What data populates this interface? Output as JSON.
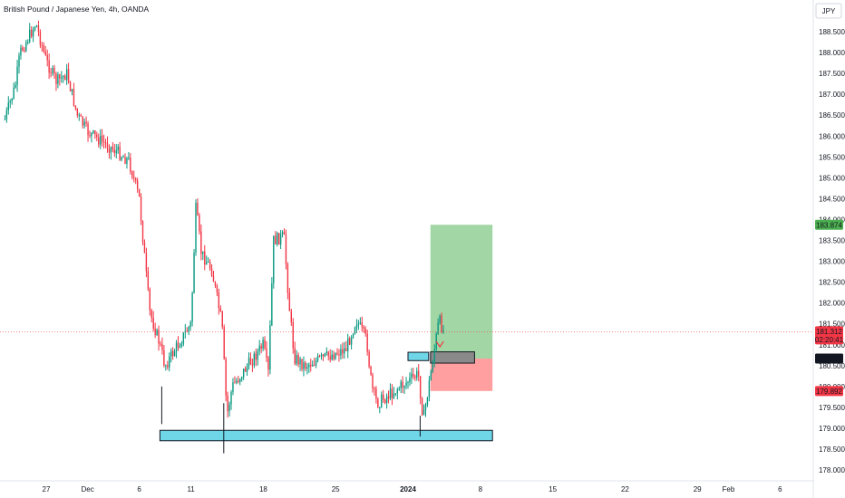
{
  "chart_data": {
    "type": "candlestick",
    "title": "British Pound / Japanese Yen, 4h, OANDA",
    "currency_label": "JPY",
    "colors": {
      "up": "#089981",
      "down": "#f23645",
      "zone": "#6fd6e8",
      "target": "#9dd49f",
      "stop": "#ff9a9a",
      "price_line": "#f23645"
    },
    "y_ticks": [
      "188.500",
      "188.000",
      "187.500",
      "187.000",
      "186.500",
      "186.000",
      "185.500",
      "185.000",
      "184.500",
      "184.000",
      "183.500",
      "183.000",
      "182.500",
      "182.000",
      "181.500",
      "181.000",
      "180.500",
      "180.000",
      "179.500",
      "179.000",
      "178.500",
      "178.000"
    ],
    "x_ticks": [
      "27",
      "Dec",
      "6",
      "11",
      "18",
      "25",
      "2024",
      "8",
      "15",
      "22",
      "29",
      "Feb",
      "6"
    ],
    "bold_x_tick": "2024",
    "price_badges": [
      {
        "label": "183.874",
        "color": "#4caf50"
      },
      {
        "label": "181.312",
        "sublabel": "02:20:41",
        "color": "#f23645"
      },
      {
        "label": "180.669",
        "color": "#131722"
      },
      {
        "label": "179.892",
        "color": "#f23645"
      }
    ],
    "price_path": [
      {
        "t": "Nov 23",
        "price": 186.4
      },
      {
        "t": "Nov 24",
        "price": 187.2
      },
      {
        "t": "Nov 24",
        "price": 188.0
      },
      {
        "t": "Nov 26",
        "price": 188.7
      },
      {
        "t": "Nov 27",
        "price": 187.8
      },
      {
        "t": "Nov 28",
        "price": 187.3
      },
      {
        "t": "Nov 29",
        "price": 187.5
      },
      {
        "t": "Nov 30",
        "price": 186.5
      },
      {
        "t": "Dec 1",
        "price": 186.1
      },
      {
        "t": "Dec 4",
        "price": 185.6
      },
      {
        "t": "Dec 5",
        "price": 185.4
      },
      {
        "t": "Dec 6",
        "price": 184.5
      },
      {
        "t": "Dec 7",
        "price": 181.8
      },
      {
        "t": "Dec 8",
        "price": 181.0
      },
      {
        "t": "Dec 8",
        "price": 180.5
      },
      {
        "t": "Dec 11",
        "price": 181.5
      },
      {
        "t": "Dec 11",
        "price": 184.3
      },
      {
        "t": "Dec 12",
        "price": 183.2
      },
      {
        "t": "Dec 13",
        "price": 182.8
      },
      {
        "t": "Dec 14",
        "price": 181.5
      },
      {
        "t": "Dec 14",
        "price": 179.3
      },
      {
        "t": "Dec 15",
        "price": 180.0
      },
      {
        "t": "Dec 18",
        "price": 181.0
      },
      {
        "t": "Dec 18",
        "price": 180.3
      },
      {
        "t": "Dec 19",
        "price": 183.5
      },
      {
        "t": "Dec 20",
        "price": 183.6
      },
      {
        "t": "Dec 20",
        "price": 182.0
      },
      {
        "t": "Dec 21",
        "price": 180.7
      },
      {
        "t": "Dec 22",
        "price": 180.5
      },
      {
        "t": "Dec 26",
        "price": 180.9
      },
      {
        "t": "Dec 27",
        "price": 181.6
      },
      {
        "t": "Dec 28",
        "price": 181.1
      },
      {
        "t": "Dec 28",
        "price": 180.0
      },
      {
        "t": "Dec 29",
        "price": 179.6
      },
      {
        "t": "Jan 2",
        "price": 180.3
      },
      {
        "t": "Jan 2",
        "price": 179.2
      },
      {
        "t": "Jan 3",
        "price": 180.0
      },
      {
        "t": "Jan 4",
        "price": 181.6
      },
      {
        "t": "Jan 4",
        "price": 181.3
      }
    ],
    "zones": [
      {
        "name": "support zone",
        "from": "Dec 8",
        "to": "Jan 9",
        "low": 178.7,
        "high": 178.95
      },
      {
        "name": "entry zone",
        "from": "Jan 1",
        "to": "Jan 3",
        "low": 180.62,
        "high": 180.82
      }
    ],
    "position": {
      "entry": 180.669,
      "target": 183.874,
      "stop": 179.892,
      "from": "Jan 3",
      "to": "Jan 9"
    },
    "current_price": 181.312
  }
}
